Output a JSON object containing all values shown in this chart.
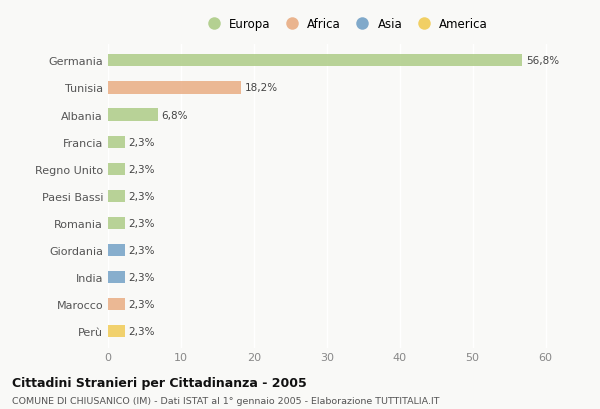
{
  "categories": [
    "Germania",
    "Tunisia",
    "Albania",
    "Francia",
    "Regno Unito",
    "Paesi Bassi",
    "Romania",
    "Giordania",
    "India",
    "Marocco",
    "Perù"
  ],
  "values": [
    56.8,
    18.2,
    6.8,
    2.3,
    2.3,
    2.3,
    2.3,
    2.3,
    2.3,
    2.3,
    2.3
  ],
  "labels": [
    "56,8%",
    "18,2%",
    "6,8%",
    "2,3%",
    "2,3%",
    "2,3%",
    "2,3%",
    "2,3%",
    "2,3%",
    "2,3%",
    "2,3%"
  ],
  "continent": [
    "Europa",
    "Africa",
    "Europa",
    "Europa",
    "Europa",
    "Europa",
    "Europa",
    "Asia",
    "Asia",
    "Africa",
    "America"
  ],
  "colors": {
    "Europa": "#a8c97f",
    "Africa": "#e8a87c",
    "Asia": "#6b9bc3",
    "America": "#f0c84a"
  },
  "legend_order": [
    "Europa",
    "Africa",
    "Asia",
    "America"
  ],
  "xlim": [
    0,
    65
  ],
  "xticks": [
    0,
    10,
    20,
    30,
    40,
    50,
    60
  ],
  "title": "Cittadini Stranieri per Cittadinanza - 2005",
  "subtitle": "COMUNE DI CHIUSANICO (IM) - Dati ISTAT al 1° gennaio 2005 - Elaborazione TUTTITALIA.IT",
  "bg_color": "#f9f9f7",
  "bar_height": 0.45
}
